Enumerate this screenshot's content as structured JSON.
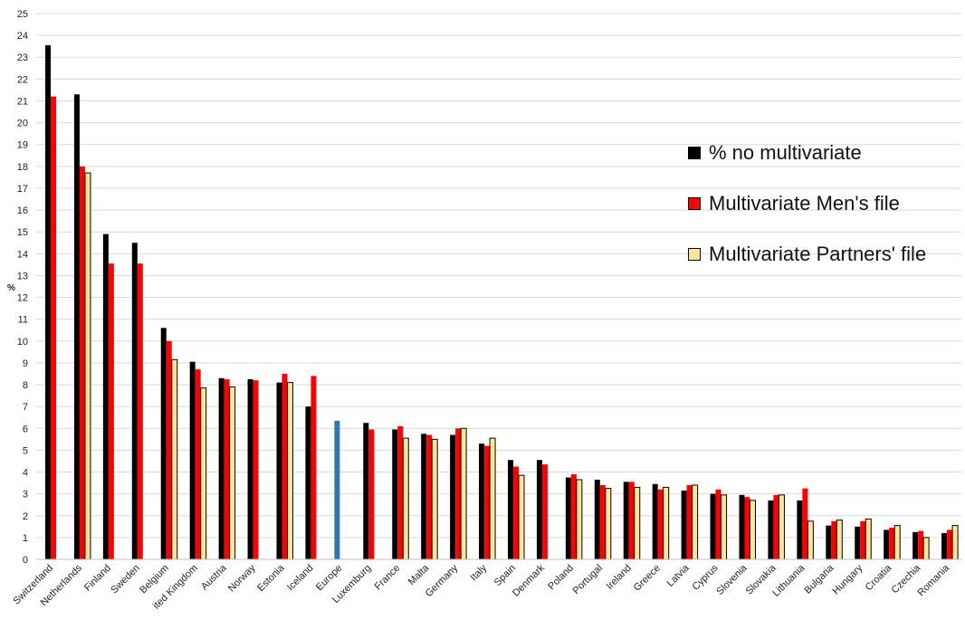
{
  "chart_data": {
    "type": "bar",
    "ylabel": "%",
    "ylim": [
      0,
      25
    ],
    "yticks": [
      "0",
      "1",
      "2",
      "3",
      "4",
      "5",
      "6",
      "7",
      "8",
      "9",
      "10",
      "11",
      "12",
      "13",
      "14",
      "15",
      "16",
      "17",
      "18",
      "19",
      "20",
      "21",
      "22",
      "23",
      "24",
      "25"
    ],
    "grid": true,
    "legend_position": "right",
    "categories": [
      "Switzerland",
      "Netherlands",
      "Finland",
      "Sweden",
      "Belgium",
      "United Kingdom",
      "Austria",
      "Norway",
      "Estonia",
      "Iceland",
      "Europe",
      "Luxemburg",
      "France",
      "Malta",
      "Germany",
      "Italy",
      "Spain",
      "Denmark",
      "Poland",
      "Portugal",
      "Ireland",
      "Greece",
      "Latvia",
      "Cyprus",
      "Slovenia",
      "Slovakia",
      "Lithuania",
      "Bulgaria",
      "Hungary",
      "Croatia",
      "Czechia",
      "Romania"
    ],
    "category_labels_visible": [
      "Switzerland",
      "Netherlands",
      "Finland",
      "Sweden",
      "Belgium",
      "ited Kingdom",
      "Austria",
      "Norway",
      "Estonia",
      "Iceland",
      "Europe",
      "Luxemburg",
      "France",
      "Malta",
      "Germany",
      "Italy",
      "Spain",
      "Denmark",
      "Poland",
      "Portugal",
      "Ireland",
      "Greece",
      "Latvia",
      "Cyprus",
      "Slovenia",
      "Slovakia",
      "Lithuania",
      "Bulgaria",
      "Hungary",
      "Croatia",
      "Czechia",
      "Romania"
    ],
    "highlight": {
      "category": "Europe",
      "color": "#2e75b6"
    },
    "series": [
      {
        "name": "% no multivariate",
        "color": "#000000",
        "values": [
          23.55,
          21.3,
          14.9,
          14.5,
          10.6,
          9.05,
          8.3,
          8.25,
          8.1,
          7.0,
          6.35,
          6.25,
          5.95,
          5.75,
          5.7,
          5.3,
          4.55,
          4.55,
          3.75,
          3.65,
          3.55,
          3.45,
          3.15,
          3.0,
          2.95,
          2.7,
          2.7,
          1.55,
          1.5,
          1.35,
          1.25,
          1.2
        ]
      },
      {
        "name": "Multivariate Men's file",
        "color": "#ff0000",
        "values": [
          21.2,
          18.0,
          13.55,
          13.55,
          10.0,
          8.7,
          8.25,
          8.2,
          8.5,
          8.4,
          null,
          5.95,
          6.1,
          5.7,
          6.0,
          5.2,
          4.25,
          4.35,
          3.9,
          3.4,
          3.55,
          3.2,
          3.4,
          3.2,
          2.85,
          2.95,
          3.25,
          1.75,
          1.75,
          1.45,
          1.3,
          1.35
        ]
      },
      {
        "name": "Multivariate Partners' file",
        "color": "#ffe699",
        "values": [
          null,
          17.7,
          null,
          null,
          9.15,
          7.85,
          7.9,
          null,
          8.1,
          null,
          null,
          null,
          5.55,
          5.5,
          6.0,
          5.55,
          3.85,
          null,
          3.65,
          3.25,
          3.3,
          3.3,
          3.4,
          2.95,
          2.7,
          2.95,
          1.75,
          1.8,
          1.85,
          1.55,
          1.0,
          1.55
        ]
      }
    ]
  }
}
